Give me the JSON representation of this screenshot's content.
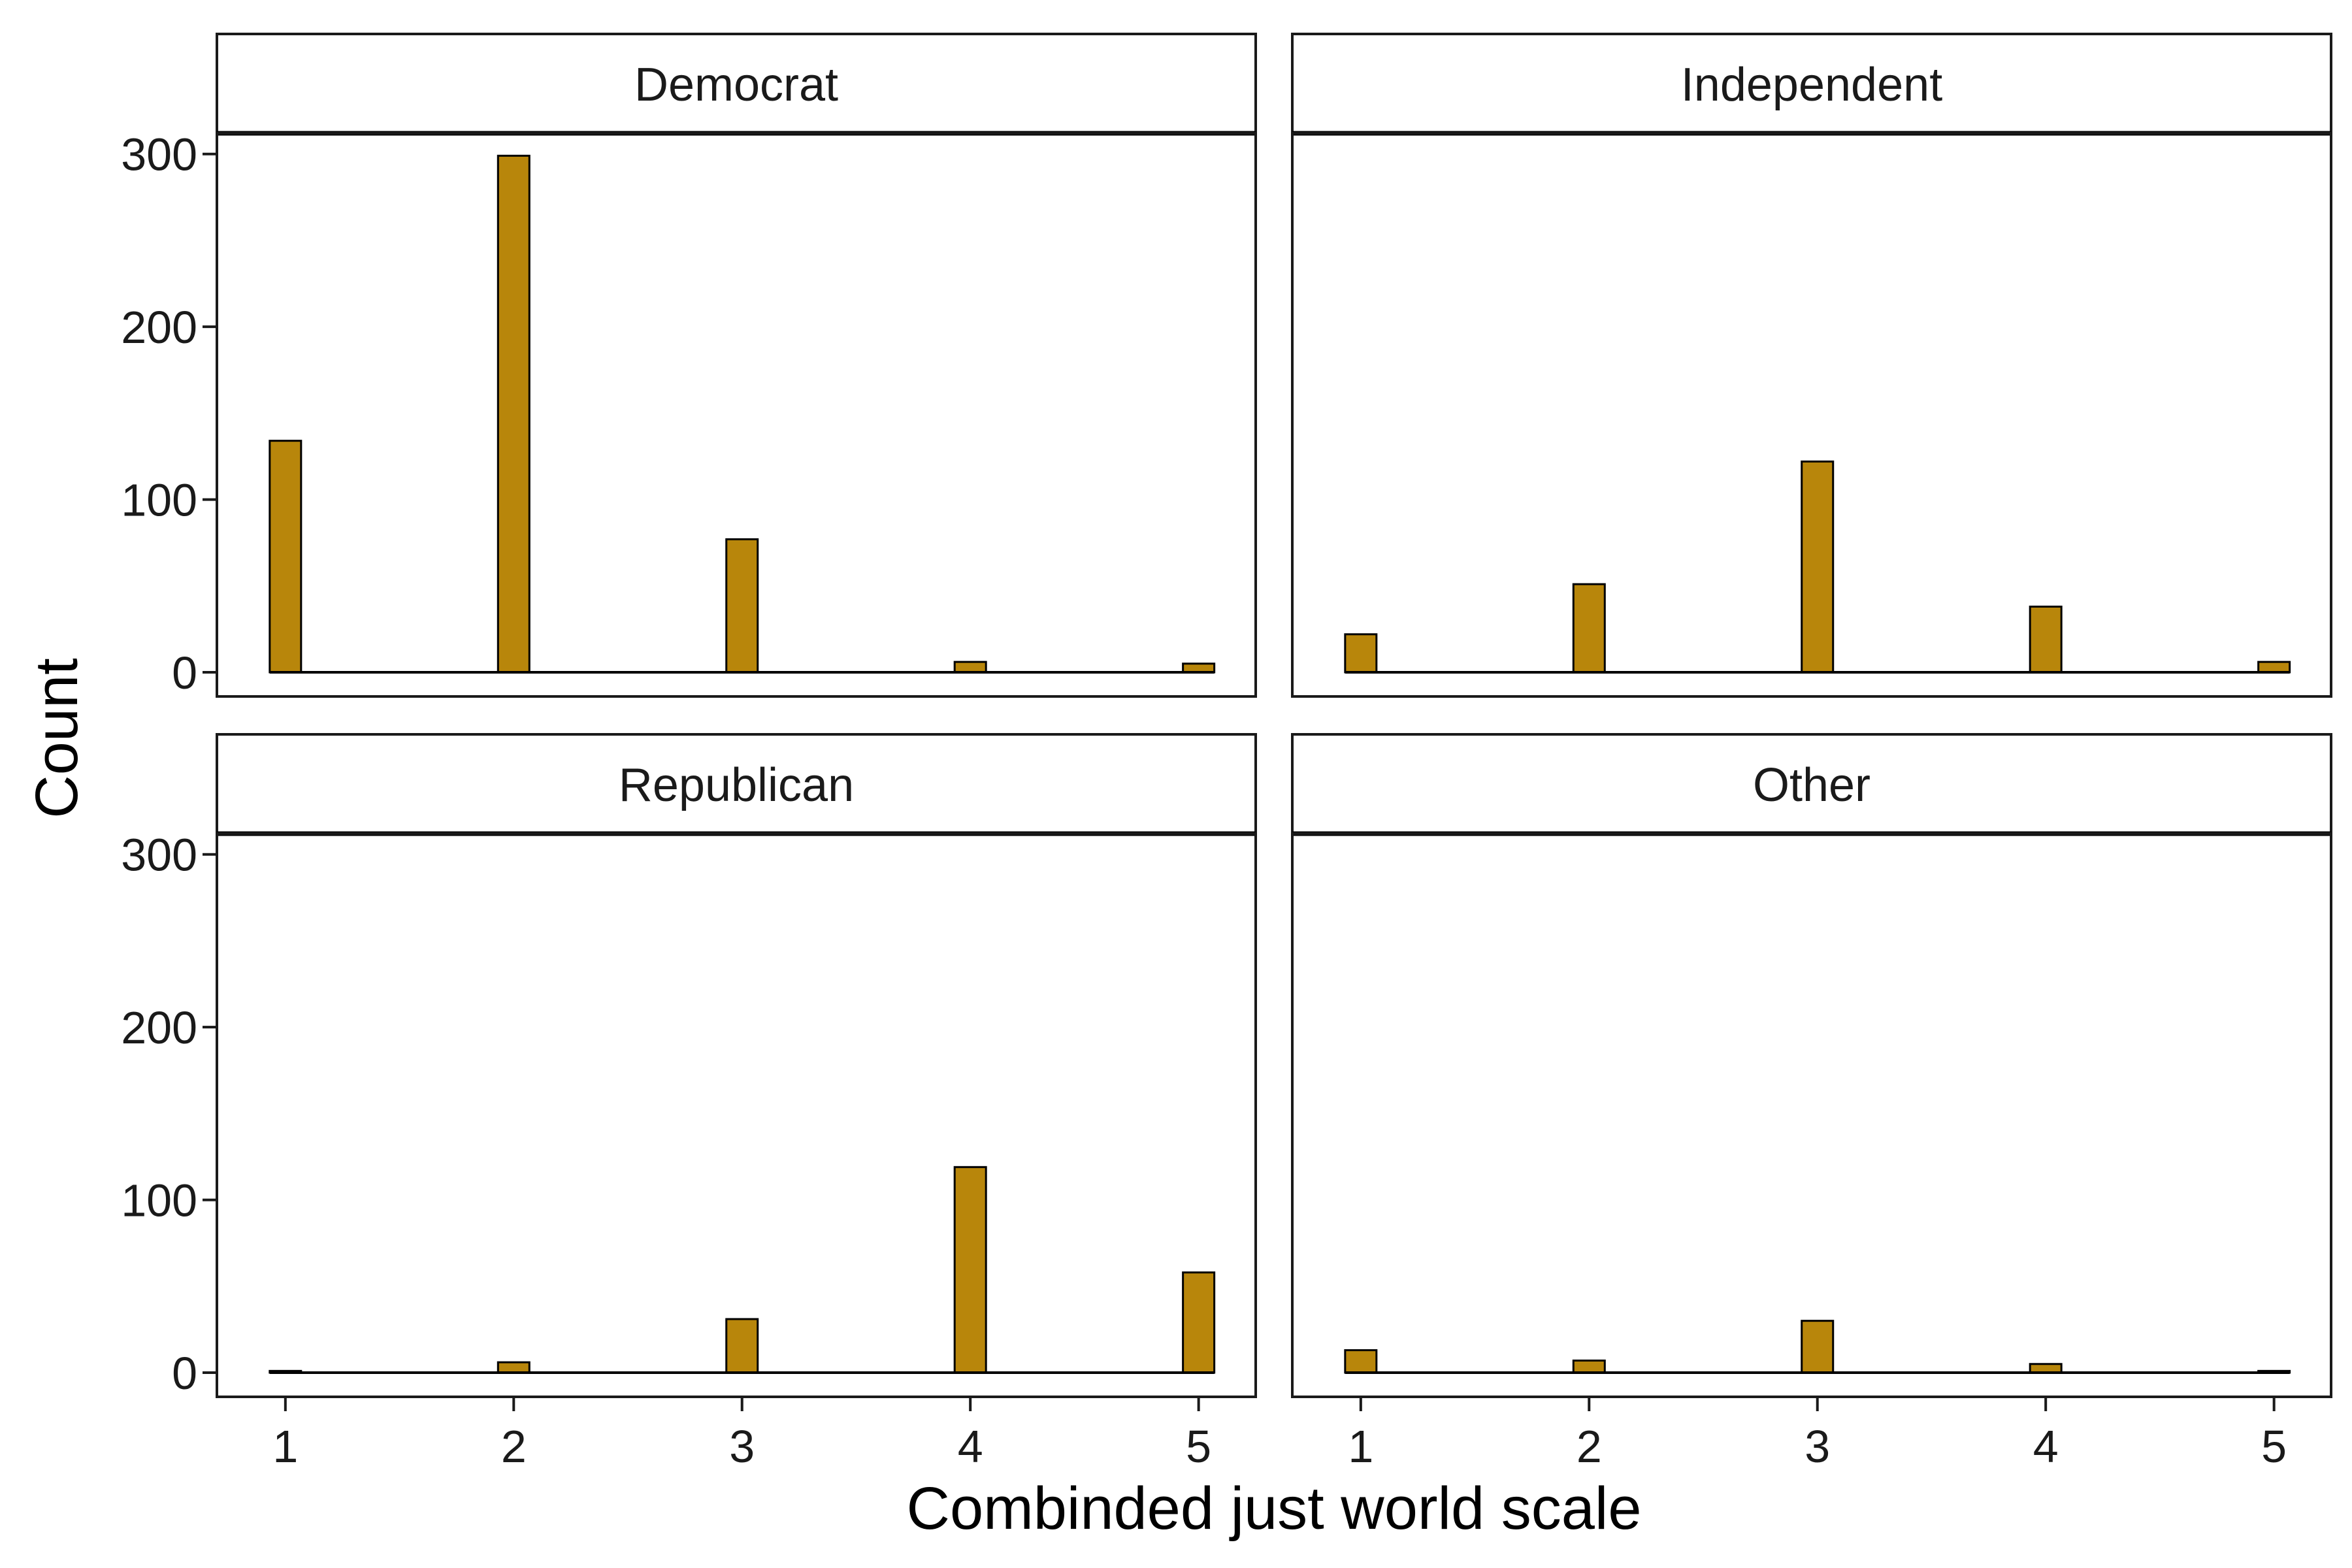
{
  "chart_data": {
    "type": "bar",
    "layout": "facet-grid 2x2",
    "xlabel": "Combinded just world scale",
    "ylabel": "Count",
    "x_ticks": [
      1,
      2,
      3,
      4,
      5
    ],
    "y_ticks": [
      0,
      100,
      200,
      300
    ],
    "xlim": [
      0.7,
      5.25
    ],
    "ylim": [
      -14,
      312
    ],
    "bar_color": "#b8860b",
    "bar_outline_color": "#000000",
    "grid": false,
    "panels": [
      {
        "name": "Democrat",
        "x": [
          1,
          2,
          3,
          4,
          5
        ],
        "values": [
          134,
          299,
          77,
          6,
          5
        ]
      },
      {
        "name": "Independent",
        "x": [
          1,
          2,
          3,
          4,
          5
        ],
        "values": [
          22,
          51,
          122,
          38,
          6
        ]
      },
      {
        "name": "Republican",
        "x": [
          1,
          2,
          3,
          4,
          5
        ],
        "values": [
          1,
          6,
          31,
          119,
          58
        ]
      },
      {
        "name": "Other",
        "x": [
          1,
          2,
          3,
          4,
          5
        ],
        "values": [
          13,
          7,
          30,
          5,
          1
        ]
      }
    ]
  }
}
